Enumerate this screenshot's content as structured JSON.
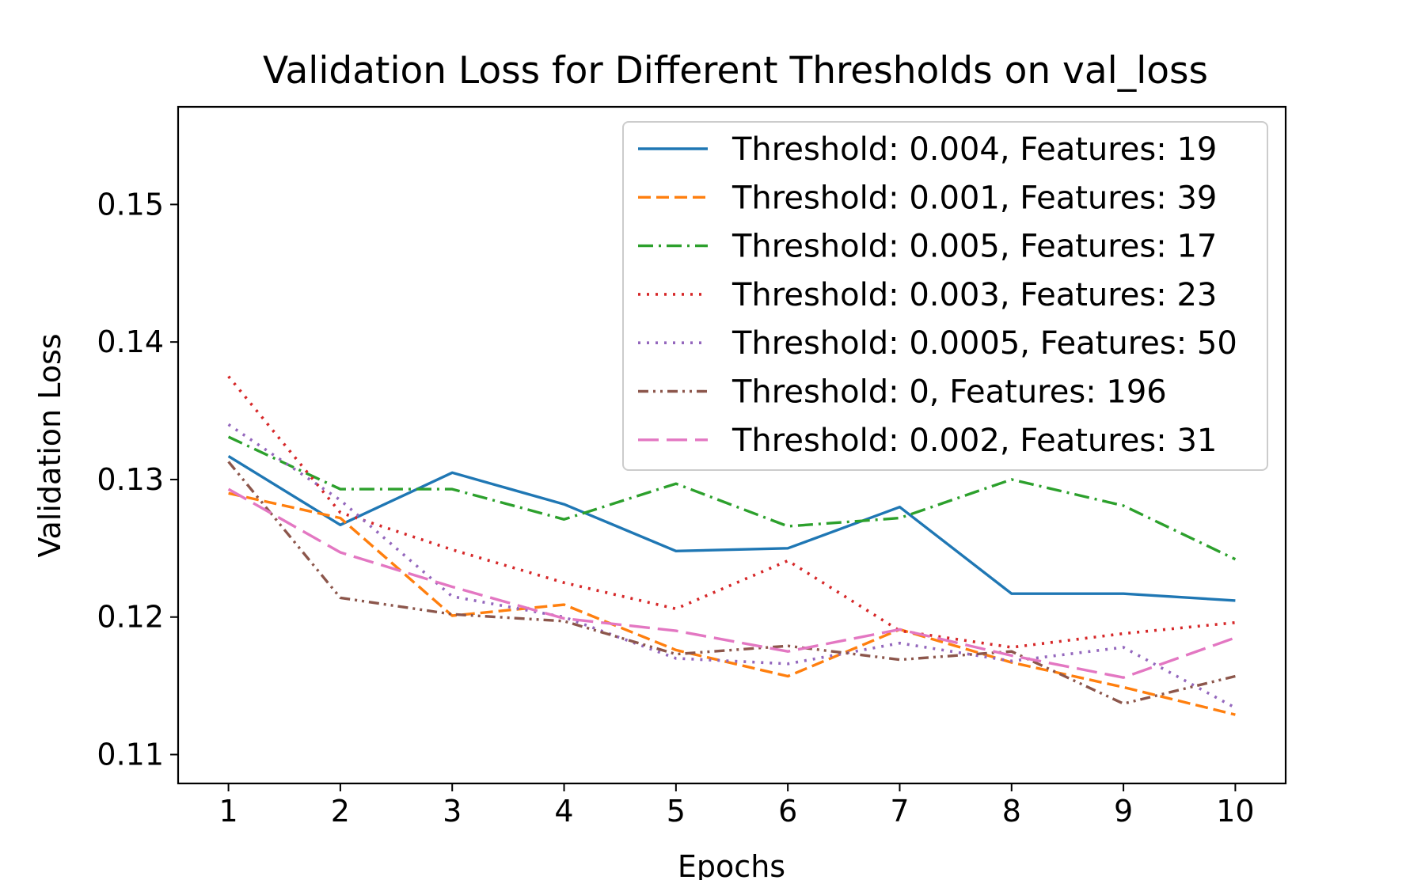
{
  "chart_data": {
    "type": "line",
    "title": "Validation Loss for Different Thresholds on val_loss",
    "xlabel": "Epochs",
    "ylabel": "Validation Loss",
    "x": [
      1,
      2,
      3,
      4,
      5,
      6,
      7,
      8,
      9,
      10
    ],
    "xticks": [
      "1",
      "2",
      "3",
      "4",
      "5",
      "6",
      "7",
      "8",
      "9",
      "10"
    ],
    "yticks": [
      "0.11",
      "0.12",
      "0.13",
      "0.14",
      "0.15"
    ],
    "ytick_values": [
      0.11,
      0.12,
      0.13,
      0.14,
      0.15
    ],
    "xlim": [
      0.55,
      10.45
    ],
    "ylim": [
      0.1079,
      0.1571
    ],
    "grid": false,
    "legend_position": "top-right",
    "series": [
      {
        "name": "Threshold: 0.004, Features: 19",
        "color": "#1f77b4",
        "style": "solid",
        "values": [
          0.1317,
          0.1267,
          0.1305,
          0.1282,
          0.1248,
          0.125,
          0.128,
          0.1217,
          0.1217,
          0.1212
        ]
      },
      {
        "name": "Threshold: 0.001, Features: 39",
        "color": "#ff7f0e",
        "style": "dashed",
        "values": [
          0.129,
          0.1272,
          0.1201,
          0.1209,
          0.1176,
          0.1157,
          0.1191,
          0.1167,
          0.1149,
          0.1129
        ]
      },
      {
        "name": "Threshold: 0.005, Features: 17",
        "color": "#2ca02c",
        "style": "dashdot",
        "values": [
          0.1331,
          0.1293,
          0.1293,
          0.1271,
          0.1297,
          0.1266,
          0.1272,
          0.13,
          0.1281,
          0.1242
        ]
      },
      {
        "name": "Threshold: 0.003, Features: 23",
        "color": "#d62728",
        "style": "dotted",
        "values": [
          0.1375,
          0.1276,
          0.1249,
          0.1225,
          0.1206,
          0.1241,
          0.119,
          0.1178,
          0.1188,
          0.1196
        ]
      },
      {
        "name": "Threshold: 0.0005, Features: 50",
        "color": "#9467bd",
        "style": "dotted",
        "values": [
          0.134,
          0.1285,
          0.1215,
          0.12,
          0.117,
          0.1166,
          0.1181,
          0.1168,
          0.1178,
          0.1134
        ]
      },
      {
        "name": "Threshold: 0, Features: 196",
        "color": "#8c564b",
        "style": "dashdotdot",
        "values": [
          0.1313,
          0.1214,
          0.1202,
          0.1197,
          0.1173,
          0.1179,
          0.1169,
          0.1175,
          0.1137,
          0.1157
        ]
      },
      {
        "name": "Threshold: 0.002, Features: 31",
        "color": "#e377c2",
        "style": "longdash",
        "values": [
          0.1293,
          0.1247,
          0.1222,
          0.1199,
          0.119,
          0.1175,
          0.1191,
          0.1172,
          0.1156,
          0.1185
        ]
      }
    ]
  }
}
